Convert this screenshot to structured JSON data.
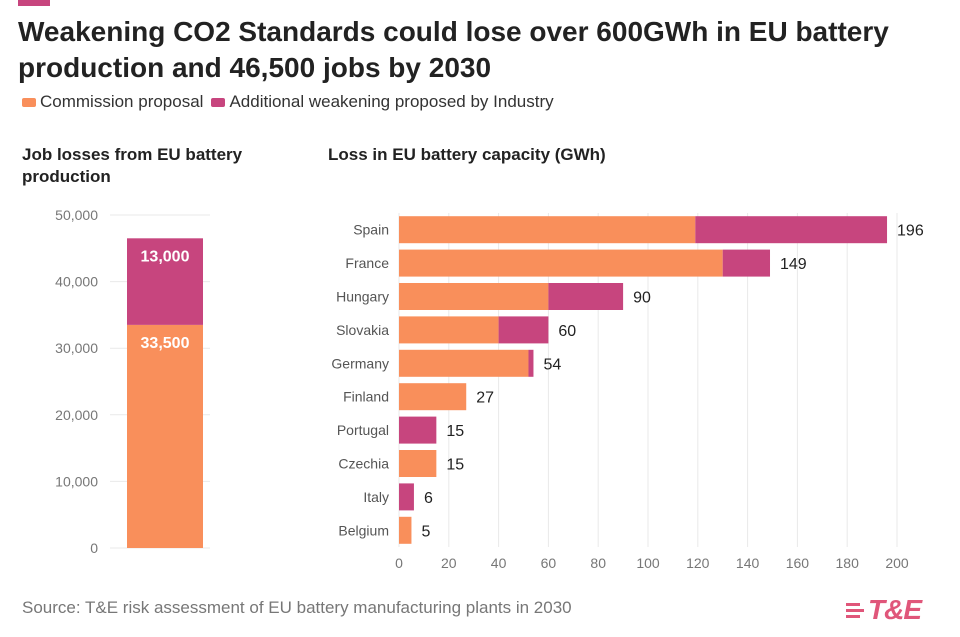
{
  "header": {
    "title": "Weakening CO2 Standards could lose over 600GWh in EU battery production and 46,500 jobs by 2030"
  },
  "legend": [
    {
      "label": "Commission proposal",
      "color": "#f98f5b"
    },
    {
      "label": "Additional weakening proposed by Industry",
      "color": "#c7457e"
    }
  ],
  "footer": {
    "source": "Source: T&E risk assessment of EU battery manufacturing plants in 2030",
    "logo_text": "T&E"
  },
  "chart_data": [
    {
      "type": "bar",
      "stacked": true,
      "title": "Job losses from EU battery production",
      "categories": [
        ""
      ],
      "series": [
        {
          "name": "Commission proposal",
          "values": [
            33500
          ],
          "labels": [
            "33,500"
          ],
          "color": "#f98f5b"
        },
        {
          "name": "Additional weakening proposed by Industry",
          "values": [
            13000
          ],
          "labels": [
            "13,000"
          ],
          "color": "#c7457e"
        }
      ],
      "ylim": [
        0,
        50000
      ],
      "yticks": [
        "0",
        "10,000",
        "20,000",
        "30,000",
        "40,000",
        "50,000"
      ],
      "grid": true
    },
    {
      "type": "bar",
      "orientation": "horizontal",
      "stacked": true,
      "title": "Loss in EU battery capacity (GWh)",
      "categories": [
        "Spain",
        "France",
        "Hungary",
        "Slovakia",
        "Germany",
        "Finland",
        "Portugal",
        "Czechia",
        "Italy",
        "Belgium"
      ],
      "series": [
        {
          "name": "Commission proposal",
          "values": [
            119,
            130,
            60,
            40,
            52,
            27,
            0,
            15,
            0,
            5
          ],
          "color": "#f98f5b"
        },
        {
          "name": "Additional weakening proposed by Industry",
          "values": [
            77,
            19,
            30,
            20,
            2,
            0,
            15,
            0,
            6,
            0
          ],
          "color": "#c7457e"
        }
      ],
      "totals": [
        "196",
        "149",
        "90",
        "60",
        "54",
        "27",
        "15",
        "15",
        "6",
        "5"
      ],
      "xlim": [
        0,
        200
      ],
      "xticks": [
        "0",
        "20",
        "40",
        "60",
        "80",
        "100",
        "120",
        "140",
        "160",
        "180",
        "200"
      ],
      "grid": true
    }
  ]
}
